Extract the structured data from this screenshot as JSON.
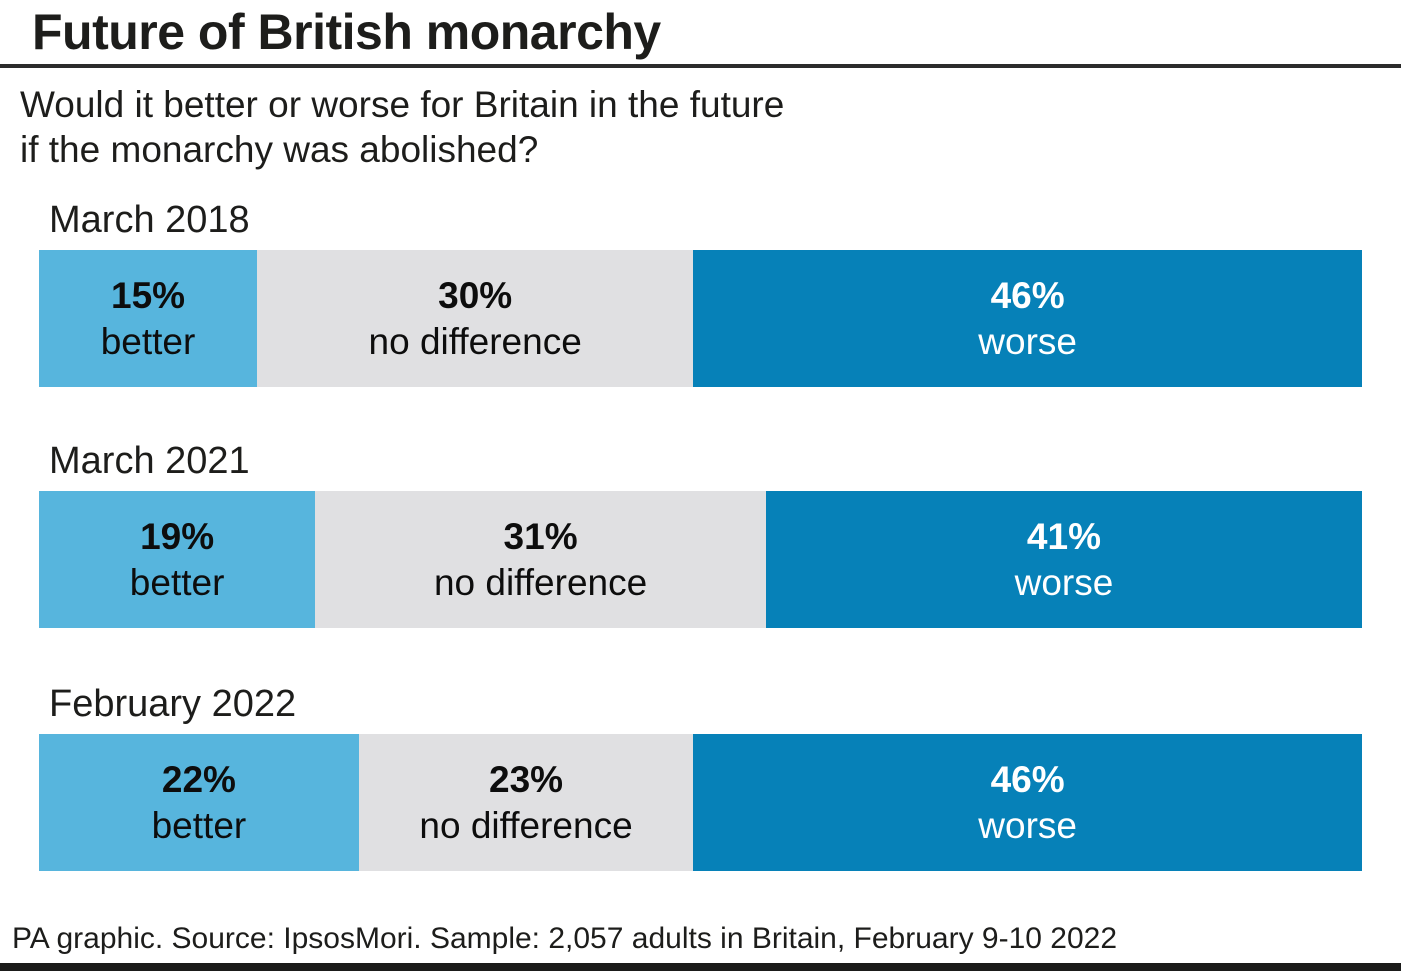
{
  "header": {
    "title": "Future of British monarchy",
    "subtitle_line1": "Would it better or worse for Britain in the future",
    "subtitle_line2": "if the monarchy was abolished?"
  },
  "chart_data": {
    "type": "bar",
    "orientation": "horizontal",
    "stacked": true,
    "title": "Future of British monarchy",
    "question": "Would it better or worse for Britain in the future if the monarchy was abolished?",
    "unit": "%",
    "categories": [
      "March 2018",
      "March 2021",
      "February 2022"
    ],
    "series": [
      {
        "name": "better",
        "values": [
          15,
          19,
          22
        ]
      },
      {
        "name": "no difference",
        "values": [
          30,
          31,
          23
        ]
      },
      {
        "name": "worse",
        "values": [
          46,
          41,
          46
        ]
      }
    ],
    "rows": [
      {
        "label": "March 2018",
        "segments": [
          {
            "name": "better",
            "pct": "15%",
            "value": 15
          },
          {
            "name": "no difference",
            "pct": "30%",
            "value": 30
          },
          {
            "name": "worse",
            "pct": "46%",
            "value": 46
          }
        ]
      },
      {
        "label": "March 2021",
        "segments": [
          {
            "name": "better",
            "pct": "19%",
            "value": 19
          },
          {
            "name": "no difference",
            "pct": "31%",
            "value": 31
          },
          {
            "name": "worse",
            "pct": "41%",
            "value": 41
          }
        ]
      },
      {
        "label": "February 2022",
        "segments": [
          {
            "name": "better",
            "pct": "22%",
            "value": 22
          },
          {
            "name": "no difference",
            "pct": "23%",
            "value": 23
          },
          {
            "name": "worse",
            "pct": "46%",
            "value": 46
          }
        ]
      }
    ],
    "colors": {
      "better": "#57b5dd",
      "no_difference": "#e0e0e2",
      "worse": "#0681b8",
      "worse_text": "#ffffff",
      "text": "#1d1d1b"
    },
    "legend": "none",
    "value_labels": "inline-two-line",
    "grid": false
  },
  "footer": {
    "source": "PA graphic. Source: IpsosMori. Sample: 2,057 adults in Britain, February 9-10 2022"
  }
}
